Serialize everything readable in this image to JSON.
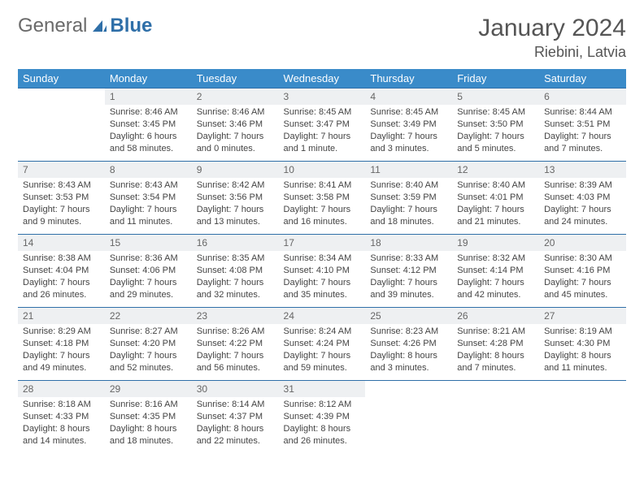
{
  "brand": {
    "part1": "General",
    "part2": "Blue"
  },
  "title": "January 2024",
  "location": "Riebini, Latvia",
  "colors": {
    "header_bg": "#3a8bc9",
    "header_text": "#ffffff",
    "border": "#2f6fa8",
    "daynum_bg": "#eef0f2",
    "text": "#444444",
    "title_text": "#555555"
  },
  "day_names": [
    "Sunday",
    "Monday",
    "Tuesday",
    "Wednesday",
    "Thursday",
    "Friday",
    "Saturday"
  ],
  "weeks": [
    [
      {
        "n": "",
        "sunrise": "",
        "sunset": "",
        "daylight": ""
      },
      {
        "n": "1",
        "sunrise": "Sunrise: 8:46 AM",
        "sunset": "Sunset: 3:45 PM",
        "daylight": "Daylight: 6 hours and 58 minutes."
      },
      {
        "n": "2",
        "sunrise": "Sunrise: 8:46 AM",
        "sunset": "Sunset: 3:46 PM",
        "daylight": "Daylight: 7 hours and 0 minutes."
      },
      {
        "n": "3",
        "sunrise": "Sunrise: 8:45 AM",
        "sunset": "Sunset: 3:47 PM",
        "daylight": "Daylight: 7 hours and 1 minute."
      },
      {
        "n": "4",
        "sunrise": "Sunrise: 8:45 AM",
        "sunset": "Sunset: 3:49 PM",
        "daylight": "Daylight: 7 hours and 3 minutes."
      },
      {
        "n": "5",
        "sunrise": "Sunrise: 8:45 AM",
        "sunset": "Sunset: 3:50 PM",
        "daylight": "Daylight: 7 hours and 5 minutes."
      },
      {
        "n": "6",
        "sunrise": "Sunrise: 8:44 AM",
        "sunset": "Sunset: 3:51 PM",
        "daylight": "Daylight: 7 hours and 7 minutes."
      }
    ],
    [
      {
        "n": "7",
        "sunrise": "Sunrise: 8:43 AM",
        "sunset": "Sunset: 3:53 PM",
        "daylight": "Daylight: 7 hours and 9 minutes."
      },
      {
        "n": "8",
        "sunrise": "Sunrise: 8:43 AM",
        "sunset": "Sunset: 3:54 PM",
        "daylight": "Daylight: 7 hours and 11 minutes."
      },
      {
        "n": "9",
        "sunrise": "Sunrise: 8:42 AM",
        "sunset": "Sunset: 3:56 PM",
        "daylight": "Daylight: 7 hours and 13 minutes."
      },
      {
        "n": "10",
        "sunrise": "Sunrise: 8:41 AM",
        "sunset": "Sunset: 3:58 PM",
        "daylight": "Daylight: 7 hours and 16 minutes."
      },
      {
        "n": "11",
        "sunrise": "Sunrise: 8:40 AM",
        "sunset": "Sunset: 3:59 PM",
        "daylight": "Daylight: 7 hours and 18 minutes."
      },
      {
        "n": "12",
        "sunrise": "Sunrise: 8:40 AM",
        "sunset": "Sunset: 4:01 PM",
        "daylight": "Daylight: 7 hours and 21 minutes."
      },
      {
        "n": "13",
        "sunrise": "Sunrise: 8:39 AM",
        "sunset": "Sunset: 4:03 PM",
        "daylight": "Daylight: 7 hours and 24 minutes."
      }
    ],
    [
      {
        "n": "14",
        "sunrise": "Sunrise: 8:38 AM",
        "sunset": "Sunset: 4:04 PM",
        "daylight": "Daylight: 7 hours and 26 minutes."
      },
      {
        "n": "15",
        "sunrise": "Sunrise: 8:36 AM",
        "sunset": "Sunset: 4:06 PM",
        "daylight": "Daylight: 7 hours and 29 minutes."
      },
      {
        "n": "16",
        "sunrise": "Sunrise: 8:35 AM",
        "sunset": "Sunset: 4:08 PM",
        "daylight": "Daylight: 7 hours and 32 minutes."
      },
      {
        "n": "17",
        "sunrise": "Sunrise: 8:34 AM",
        "sunset": "Sunset: 4:10 PM",
        "daylight": "Daylight: 7 hours and 35 minutes."
      },
      {
        "n": "18",
        "sunrise": "Sunrise: 8:33 AM",
        "sunset": "Sunset: 4:12 PM",
        "daylight": "Daylight: 7 hours and 39 minutes."
      },
      {
        "n": "19",
        "sunrise": "Sunrise: 8:32 AM",
        "sunset": "Sunset: 4:14 PM",
        "daylight": "Daylight: 7 hours and 42 minutes."
      },
      {
        "n": "20",
        "sunrise": "Sunrise: 8:30 AM",
        "sunset": "Sunset: 4:16 PM",
        "daylight": "Daylight: 7 hours and 45 minutes."
      }
    ],
    [
      {
        "n": "21",
        "sunrise": "Sunrise: 8:29 AM",
        "sunset": "Sunset: 4:18 PM",
        "daylight": "Daylight: 7 hours and 49 minutes."
      },
      {
        "n": "22",
        "sunrise": "Sunrise: 8:27 AM",
        "sunset": "Sunset: 4:20 PM",
        "daylight": "Daylight: 7 hours and 52 minutes."
      },
      {
        "n": "23",
        "sunrise": "Sunrise: 8:26 AM",
        "sunset": "Sunset: 4:22 PM",
        "daylight": "Daylight: 7 hours and 56 minutes."
      },
      {
        "n": "24",
        "sunrise": "Sunrise: 8:24 AM",
        "sunset": "Sunset: 4:24 PM",
        "daylight": "Daylight: 7 hours and 59 minutes."
      },
      {
        "n": "25",
        "sunrise": "Sunrise: 8:23 AM",
        "sunset": "Sunset: 4:26 PM",
        "daylight": "Daylight: 8 hours and 3 minutes."
      },
      {
        "n": "26",
        "sunrise": "Sunrise: 8:21 AM",
        "sunset": "Sunset: 4:28 PM",
        "daylight": "Daylight: 8 hours and 7 minutes."
      },
      {
        "n": "27",
        "sunrise": "Sunrise: 8:19 AM",
        "sunset": "Sunset: 4:30 PM",
        "daylight": "Daylight: 8 hours and 11 minutes."
      }
    ],
    [
      {
        "n": "28",
        "sunrise": "Sunrise: 8:18 AM",
        "sunset": "Sunset: 4:33 PM",
        "daylight": "Daylight: 8 hours and 14 minutes."
      },
      {
        "n": "29",
        "sunrise": "Sunrise: 8:16 AM",
        "sunset": "Sunset: 4:35 PM",
        "daylight": "Daylight: 8 hours and 18 minutes."
      },
      {
        "n": "30",
        "sunrise": "Sunrise: 8:14 AM",
        "sunset": "Sunset: 4:37 PM",
        "daylight": "Daylight: 8 hours and 22 minutes."
      },
      {
        "n": "31",
        "sunrise": "Sunrise: 8:12 AM",
        "sunset": "Sunset: 4:39 PM",
        "daylight": "Daylight: 8 hours and 26 minutes."
      },
      {
        "n": "",
        "sunrise": "",
        "sunset": "",
        "daylight": ""
      },
      {
        "n": "",
        "sunrise": "",
        "sunset": "",
        "daylight": ""
      },
      {
        "n": "",
        "sunrise": "",
        "sunset": "",
        "daylight": ""
      }
    ]
  ]
}
